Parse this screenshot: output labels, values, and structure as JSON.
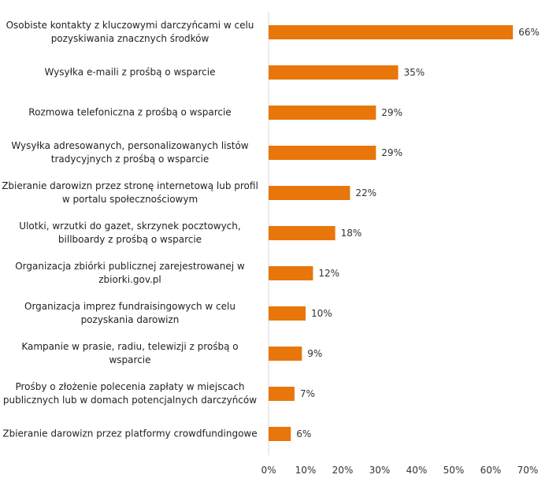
{
  "chart_data": {
    "type": "bar",
    "orientation": "horizontal",
    "title": "",
    "xlabel": "",
    "ylabel": "",
    "xlim": [
      0,
      70
    ],
    "grid": false,
    "bar_color": "#E8760A",
    "x_ticks": [
      "0%",
      "10%",
      "20%",
      "30%",
      "40%",
      "50%",
      "60%",
      "70%"
    ],
    "categories": [
      "Osobiste kontakty z kluczowymi darczyńcami  w celu\npozyskiwania znacznych środków",
      "Wysyłka e-maili z prośbą o wsparcie",
      "Rozmowa telefoniczna z prośbą o wsparcie",
      "Wysyłka adresowanych, personalizowanych listów\ntradycyjnych z prośbą o wsparcie",
      "Zbieranie darowizn przez stronę internetową lub profil\nw portalu społecznościowym",
      "Ulotki, wrzutki do gazet, skrzynek pocztowych,\nbillboardy z prośbą o wsparcie",
      "Organizacja zbiórki publicznej zarejestrowanej w\nzbiorki.gov.pl",
      "Organizacja imprez fundraisingowych w celu\npozyskania darowizn",
      "Kampanie w  prasie, radiu, telewizji z prośbą o\nwsparcie",
      "Prośby o złożenie polecenia zapłaty w miejscach\npublicznych lub w domach potencjalnych darczyńców",
      "Zbieranie darowizn przez platformy crowdfundingowe"
    ],
    "values": [
      66,
      35,
      29,
      29,
      22,
      18,
      12,
      10,
      9,
      7,
      6
    ],
    "data_labels": [
      "66%",
      "35%",
      "29%",
      "29%",
      "22%",
      "18%",
      "12%",
      "10%",
      "9%",
      "7%",
      "6%"
    ]
  }
}
